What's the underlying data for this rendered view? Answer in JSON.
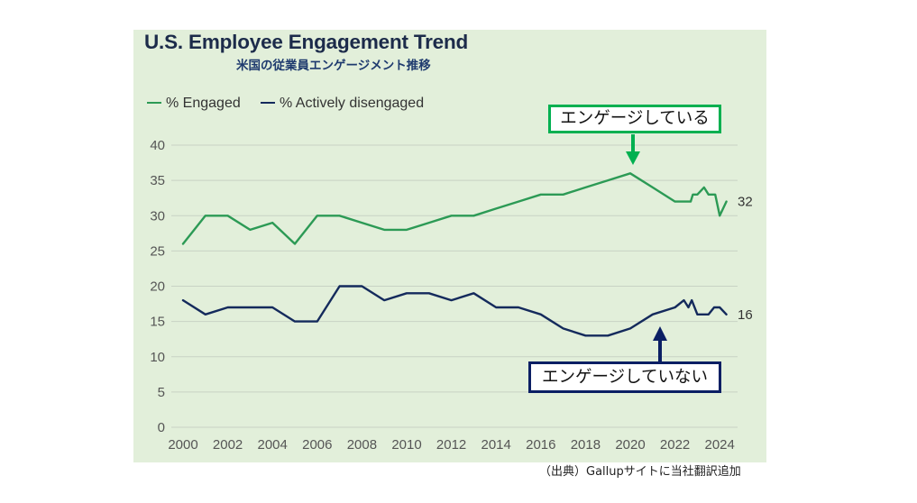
{
  "page": {
    "footnote": "（出典）Gallupサイトに当社翻訳追加"
  },
  "colors": {
    "panel_background": "#e2efda",
    "title": "#1c2b4a",
    "subtitle": "#1e3a6e",
    "callout_engaged_border": "#00b050",
    "callout_disengaged_border": "#0b1f64"
  },
  "chart_data": {
    "type": "line",
    "title": "U.S. Employee Engagement Trend",
    "subtitle": "米国の従業員エンゲージメント推移",
    "xlim": [
      1999.5,
      2024.8
    ],
    "ylim": [
      0,
      40
    ],
    "xticks": [
      2000,
      2002,
      2004,
      2006,
      2008,
      2010,
      2012,
      2014,
      2016,
      2018,
      2020,
      2022,
      2024
    ],
    "yticks": [
      0,
      5,
      10,
      15,
      20,
      25,
      30,
      35,
      40
    ],
    "grid": "horizontal",
    "legend": "top-left",
    "series": [
      {
        "name": "% Engaged",
        "color": "#2c9a55",
        "x": [
          2000,
          2001,
          2002,
          2003,
          2004,
          2005,
          2006,
          2007,
          2008,
          2009,
          2010,
          2011,
          2012,
          2013,
          2014,
          2015,
          2016,
          2017,
          2018,
          2019,
          2020,
          2021,
          2022,
          2022.7,
          2022.8,
          2023.0,
          2023.3,
          2023.5,
          2023.8,
          2024.0,
          2024.3
        ],
        "y": [
          26,
          30,
          30,
          28,
          29,
          26,
          30,
          30,
          29,
          28,
          28,
          29,
          30,
          30,
          31,
          32,
          33,
          33,
          34,
          35,
          36,
          34,
          32,
          32,
          33,
          33,
          34,
          33,
          33,
          30,
          32
        ],
        "end_label": "32"
      },
      {
        "name": "% Actively disengaged",
        "color": "#142a5c",
        "x": [
          2000,
          2001,
          2002,
          2003,
          2004,
          2005,
          2006,
          2007,
          2008,
          2009,
          2010,
          2011,
          2012,
          2013,
          2014,
          2015,
          2016,
          2017,
          2018,
          2019,
          2020,
          2021,
          2022,
          2022.4,
          2022.6,
          2022.75,
          2023.0,
          2023.5,
          2023.75,
          2024.0,
          2024.3
        ],
        "y": [
          18,
          16,
          17,
          17,
          17,
          15,
          15,
          20,
          20,
          18,
          19,
          19,
          18,
          19,
          17,
          17,
          16,
          14,
          13,
          13,
          14,
          16,
          17,
          18,
          17,
          18,
          16,
          16,
          17,
          17,
          16
        ],
        "end_label": "16"
      }
    ],
    "callouts": [
      {
        "text": "エンゲージしている",
        "series": "% Engaged"
      },
      {
        "text": "エンゲージしていない",
        "series": "% Actively disengaged"
      }
    ]
  }
}
